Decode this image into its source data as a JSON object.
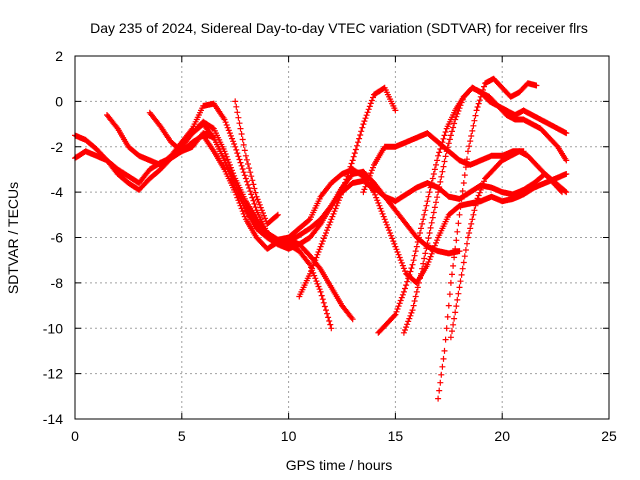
{
  "chart_data": {
    "type": "scatter",
    "title": "Day 235 of 2024, Sidereal Day-to-day VTEC variation (SDTVAR) for receiver flrs",
    "xlabel": "GPS time / hours",
    "ylabel": "SDTVAR / TECUs",
    "xlim": [
      0,
      25
    ],
    "ylim": [
      -14,
      2
    ],
    "xticks": [
      0,
      5,
      10,
      15,
      20,
      25
    ],
    "yticks": [
      -14,
      -12,
      -10,
      -8,
      -6,
      -4,
      -2,
      0,
      2
    ],
    "grid": true,
    "legend": "none",
    "marker": "+",
    "color": "#ff0000",
    "series": [
      {
        "x": [
          0.0,
          0.5,
          1.0,
          1.5,
          2.0,
          2.5,
          3.0,
          3.5,
          4.0,
          4.5,
          5.0,
          5.5,
          6.0,
          6.5,
          7.0,
          7.5,
          8.0,
          8.5,
          9.0,
          9.5,
          10.0,
          10.5,
          11.0,
          11.5,
          12.0
        ],
        "y": [
          -2.5,
          -2.2,
          -2.4,
          -2.6,
          -3.0,
          -3.3,
          -3.6,
          -3.0,
          -2.7,
          -2.5,
          -2.2,
          -1.8,
          -1.5,
          -2.2,
          -3.0,
          -4.0,
          -5.2,
          -6.0,
          -6.5,
          -6.2,
          -6.3,
          -6.6,
          -7.2,
          -8.4,
          -10.0
        ]
      },
      {
        "x": [
          0.0,
          0.5,
          1.0,
          1.5,
          2.0,
          2.5,
          3.0,
          3.5,
          4.0,
          4.5,
          5.0,
          5.5,
          6.0,
          6.5,
          7.0,
          7.5,
          8.0,
          8.5,
          9.0,
          9.5,
          10.0,
          10.5,
          11.0,
          11.5,
          12.0,
          12.5,
          13.0
        ],
        "y": [
          -1.5,
          -1.7,
          -2.1,
          -2.6,
          -3.2,
          -3.6,
          -3.9,
          -3.4,
          -3.0,
          -2.5,
          -2.0,
          -1.4,
          -1.0,
          -1.6,
          -2.6,
          -3.6,
          -4.6,
          -5.4,
          -5.9,
          -6.2,
          -6.1,
          -6.3,
          -6.8,
          -7.4,
          -8.2,
          -9.0,
          -9.6
        ]
      },
      {
        "x": [
          1.5,
          2.0,
          2.5,
          3.0,
          3.5,
          4.0,
          4.5,
          5.0,
          5.5,
          6.0,
          6.5,
          7.0,
          7.5,
          8.0,
          8.5,
          9.0,
          9.5,
          10.0,
          10.5,
          11.0,
          11.5,
          12.0,
          12.5,
          13.0,
          13.5,
          14.0,
          14.5,
          15.0,
          15.5,
          16.0,
          16.5,
          17.0,
          17.5,
          18.0
        ],
        "y": [
          -0.6,
          -1.2,
          -2.0,
          -2.4,
          -2.6,
          -2.8,
          -2.4,
          -1.8,
          -1.4,
          -0.9,
          -1.2,
          -2.2,
          -3.4,
          -4.4,
          -5.2,
          -5.8,
          -6.3,
          -6.5,
          -6.3,
          -6.0,
          -5.4,
          -4.6,
          -3.8,
          -3.2,
          -3.1,
          -3.6,
          -4.2,
          -4.8,
          -5.4,
          -6.0,
          -6.4,
          -6.6,
          -6.7,
          -6.6
        ]
      },
      {
        "x": [
          3.5,
          4.0,
          4.5,
          5.0,
          5.5,
          6.0,
          6.5,
          7.0,
          7.5,
          8.0,
          8.5,
          9.0,
          9.5,
          10.0,
          10.5,
          11.0,
          11.5,
          12.0,
          12.5,
          13.0,
          13.5,
          14.0,
          14.5,
          15.0,
          15.5,
          16.0,
          16.5,
          17.0,
          17.5,
          18.0,
          18.5,
          19.0,
          19.5,
          20.0,
          20.5,
          21.0,
          21.5,
          22.0,
          22.5,
          23.0
        ],
        "y": [
          -0.5,
          -1.1,
          -1.8,
          -2.2,
          -2.0,
          -1.4,
          -1.6,
          -2.6,
          -3.8,
          -4.8,
          -5.6,
          -6.0,
          -6.3,
          -6.2,
          -5.9,
          -5.6,
          -5.2,
          -4.6,
          -4.0,
          -3.6,
          -3.5,
          -3.8,
          -4.2,
          -4.4,
          -4.1,
          -3.8,
          -3.6,
          -3.8,
          -4.2,
          -4.3,
          -4.0,
          -3.7,
          -3.8,
          -4.0,
          -4.1,
          -3.9,
          -3.6,
          -3.2,
          -3.6,
          -4.0
        ]
      },
      {
        "x": [
          5.0,
          5.5,
          6.0,
          6.5,
          7.0,
          7.5,
          8.0,
          8.5,
          9.0,
          9.5,
          10.0,
          10.5,
          11.0,
          11.5,
          12.0,
          12.5,
          13.0,
          13.5,
          14.0,
          14.5,
          15.0,
          15.5,
          16.0,
          16.5,
          17.0,
          17.5,
          18.0,
          18.5,
          19.0,
          19.5,
          20.0,
          20.5,
          21.0,
          21.5,
          22.0,
          22.5,
          23.0
        ],
        "y": [
          -1.8,
          -1.2,
          -0.2,
          -0.1,
          -0.8,
          -2.0,
          -3.4,
          -4.8,
          -5.8,
          -6.1,
          -6.0,
          -5.6,
          -5.2,
          -4.2,
          -3.6,
          -3.2,
          -3.0,
          -3.3,
          -4.0,
          -5.2,
          -6.4,
          -7.6,
          -8.0,
          -7.2,
          -6.0,
          -5.0,
          -4.6,
          -4.5,
          -4.4,
          -4.2,
          -4.4,
          -4.3,
          -4.1,
          -3.8,
          -3.6,
          -3.4,
          -3.2
        ]
      },
      {
        "x": [
          7.5,
          8.0,
          8.5,
          9.0,
          9.5
        ],
        "y": [
          0.0,
          -2.4,
          -4.2,
          -5.4,
          -5.0
        ]
      },
      {
        "x": [
          10.5,
          11.0,
          11.5,
          12.0,
          12.5,
          13.0,
          13.5,
          14.0,
          14.5,
          15.0
        ],
        "y": [
          -8.6,
          -7.6,
          -6.4,
          -5.2,
          -4.0,
          -2.6,
          -1.0,
          0.3,
          0.6,
          -0.4
        ]
      },
      {
        "x": [
          13.5,
          14.0,
          14.5,
          15.0,
          15.5,
          16.0,
          16.5,
          17.0,
          17.5,
          18.0,
          18.5,
          19.0,
          19.5,
          20.0,
          20.5,
          21.0
        ],
        "y": [
          -4.0,
          -2.8,
          -2.0,
          -2.0,
          -1.8,
          -1.6,
          -1.4,
          -1.8,
          -2.2,
          -2.6,
          -2.8,
          -2.6,
          -2.4,
          -2.4,
          -2.2,
          -2.2
        ]
      },
      {
        "x": [
          14.2,
          14.6,
          15.0,
          15.4,
          15.8,
          16.2,
          16.6,
          17.0,
          17.4,
          17.8,
          18.2,
          18.6,
          19.0,
          19.4,
          19.8,
          20.2,
          20.6,
          21.0,
          21.4,
          21.8,
          22.2,
          22.6,
          23.0
        ],
        "y": [
          -10.2,
          -9.8,
          -9.4,
          -8.4,
          -7.2,
          -5.6,
          -4.0,
          -2.4,
          -1.2,
          -0.4,
          0.2,
          0.6,
          0.4,
          0.2,
          -0.2,
          -0.6,
          -0.8,
          -0.8,
          -1.0,
          -1.2,
          -1.6,
          -2.0,
          -2.6
        ]
      },
      {
        "x": [
          15.4,
          15.8,
          16.2,
          16.6,
          17.0,
          17.4,
          17.8,
          18.2,
          18.6,
          19.0,
          19.4,
          19.8,
          20.2,
          20.6,
          21.0,
          21.4,
          21.8,
          22.2,
          22.6,
          23.0
        ],
        "y": [
          -10.2,
          -9.2,
          -7.6,
          -5.8,
          -4.0,
          -2.2,
          -0.8,
          0.2,
          0.6,
          0.4,
          0.0,
          -0.2,
          -0.4,
          -0.6,
          -0.4,
          -0.6,
          -0.8,
          -1.0,
          -1.2,
          -1.4
        ]
      },
      {
        "x": [
          17.0,
          17.3,
          17.6,
          18.0,
          18.4,
          18.8,
          19.2,
          19.6,
          20.0,
          20.4,
          20.8,
          21.2,
          21.6
        ],
        "y": [
          -13.1,
          -11.0,
          -8.0,
          -5.0,
          -2.2,
          -0.4,
          0.8,
          1.0,
          0.6,
          0.2,
          0.4,
          0.8,
          0.7
        ]
      },
      {
        "x": [
          17.6,
          18.0,
          18.4,
          18.8,
          19.2,
          19.6,
          20.0,
          20.4,
          20.8,
          21.2,
          21.6,
          22.0,
          22.4,
          22.8
        ],
        "y": [
          -10.4,
          -8.2,
          -6.0,
          -4.4,
          -3.4,
          -3.0,
          -2.6,
          -2.4,
          -2.2,
          -2.4,
          -2.8,
          -3.2,
          -3.6,
          -4.0
        ]
      }
    ]
  }
}
